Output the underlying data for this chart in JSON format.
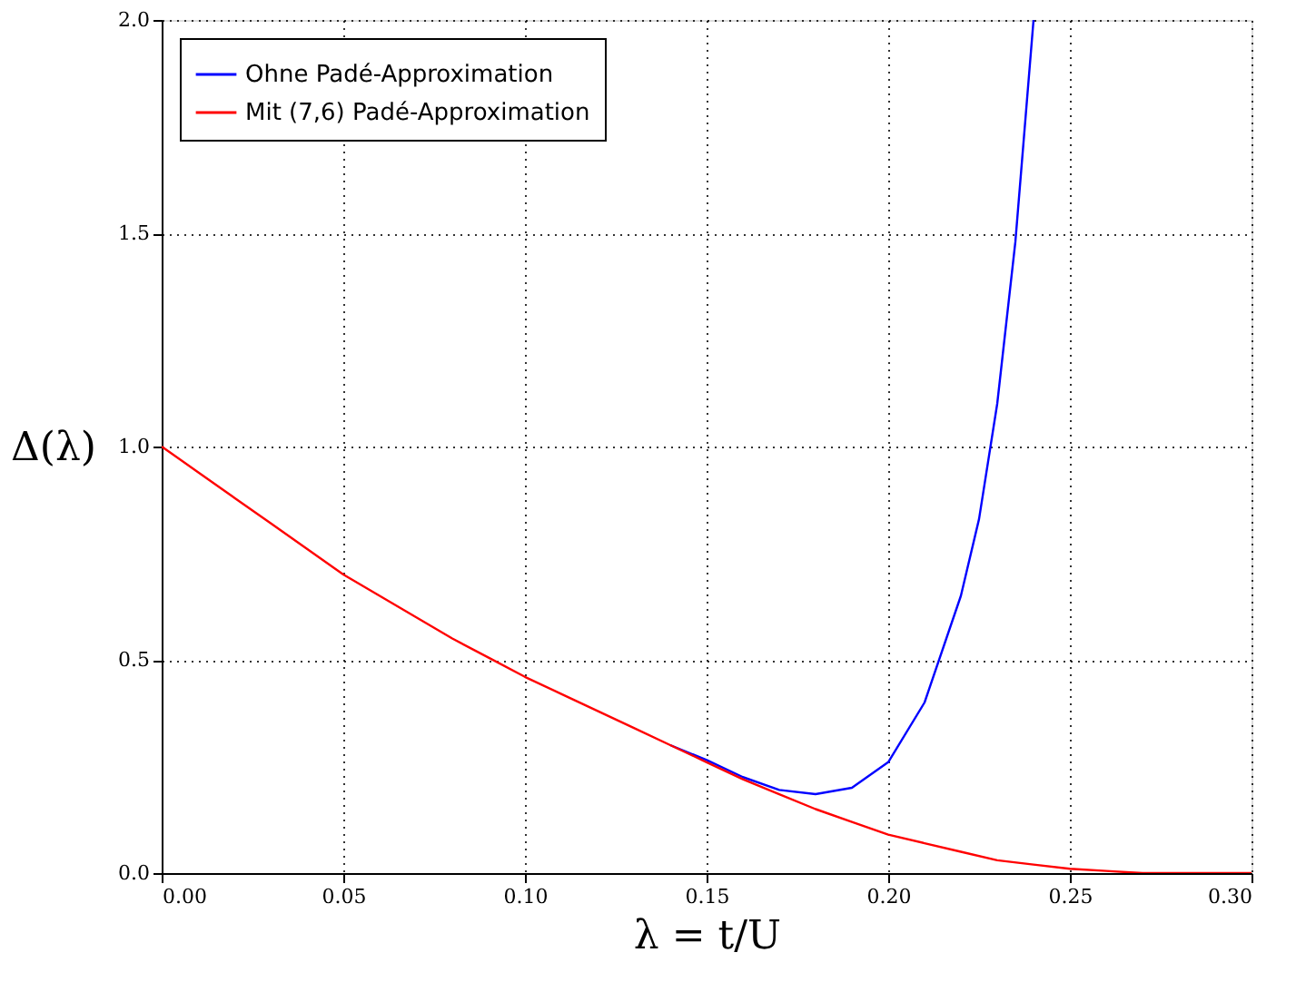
{
  "chart_data": {
    "type": "line",
    "xlabel": "λ = t/U",
    "ylabel": "Δ(λ)",
    "xlim": [
      0,
      0.3
    ],
    "ylim": [
      0,
      2
    ],
    "xticks": [
      {
        "value": 0,
        "label": "0.00"
      },
      {
        "value": 0.05,
        "label": "0.05"
      },
      {
        "value": 0.1,
        "label": "0.10"
      },
      {
        "value": 0.15,
        "label": "0.15"
      },
      {
        "value": 0.2,
        "label": "0.20"
      },
      {
        "value": 0.25,
        "label": "0.25"
      },
      {
        "value": 0.3,
        "label": "0.30"
      }
    ],
    "yticks": [
      {
        "value": 0,
        "label": "0.0"
      },
      {
        "value": 0.5,
        "label": "0.5"
      },
      {
        "value": 1,
        "label": "1.0"
      },
      {
        "value": 1.5,
        "label": "1.5"
      },
      {
        "value": 2,
        "label": "2.0"
      }
    ],
    "grid": true,
    "legend": "top left",
    "marker": "none",
    "line_style": "solid",
    "series": [
      {
        "name": "Ohne Padé-Approximation",
        "color": "#0000ff",
        "x": [
          0.14,
          0.15,
          0.16,
          0.17,
          0.18,
          0.19,
          0.2,
          0.21,
          0.22,
          0.225,
          0.23,
          0.235,
          0.24
        ],
        "values": [
          0.3,
          0.265,
          0.225,
          0.195,
          0.185,
          0.2,
          0.26,
          0.4,
          0.65,
          0.83,
          1.1,
          1.48,
          2.0
        ]
      },
      {
        "name": "Mit (7,6) Padé-Approximation",
        "color": "#ff0000",
        "x": [
          0,
          0.01,
          0.02,
          0.03,
          0.04,
          0.05,
          0.06,
          0.07,
          0.08,
          0.09,
          0.1,
          0.11,
          0.12,
          0.13,
          0.14,
          0.15,
          0.16,
          0.17,
          0.18,
          0.19,
          0.2,
          0.21,
          0.22,
          0.23,
          0.24,
          0.25,
          0.26,
          0.27,
          0.28,
          0.29,
          0.3
        ],
        "values": [
          1.0,
          0.94,
          0.88,
          0.82,
          0.76,
          0.7,
          0.65,
          0.6,
          0.55,
          0.505,
          0.46,
          0.42,
          0.38,
          0.34,
          0.3,
          0.26,
          0.22,
          0.185,
          0.15,
          0.12,
          0.09,
          0.07,
          0.05,
          0.03,
          0.02,
          0.01,
          0.005,
          0,
          0,
          0,
          0
        ]
      }
    ]
  }
}
